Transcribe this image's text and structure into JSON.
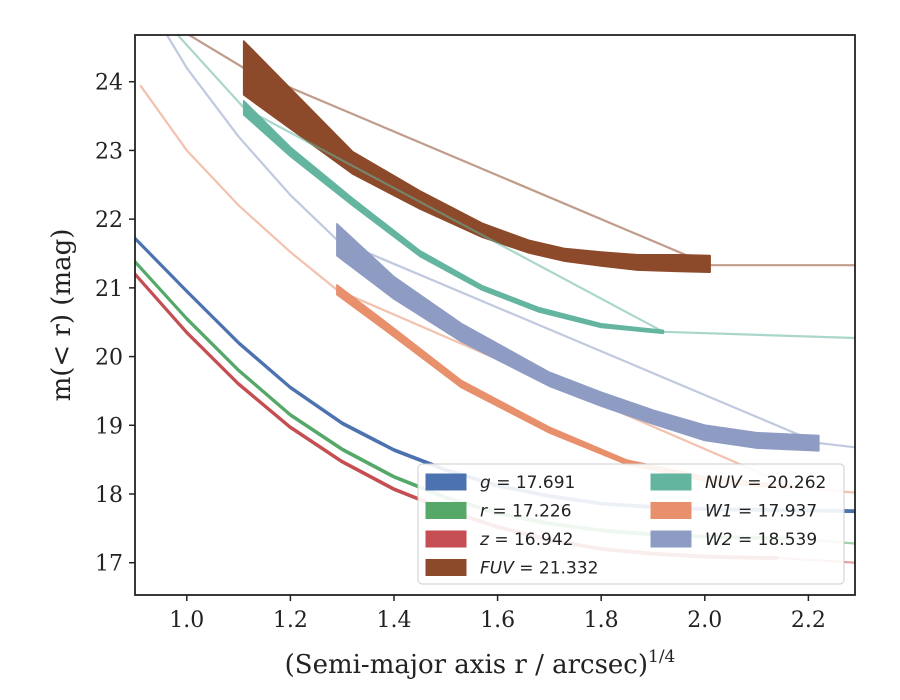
{
  "chart_data": {
    "type": "line",
    "xlabel": "(Semi-major axis r / arcsec)",
    "xlabel_sup": "1/4",
    "ylabel": "m(< r) (mag)",
    "xlim": [
      0.9,
      2.29
    ],
    "ylim": [
      24.68,
      16.53
    ],
    "y_inverted": true,
    "xticks": [
      1.0,
      1.2,
      1.4,
      1.6,
      1.8,
      2.0,
      2.2
    ],
    "xtick_labels": [
      "1.0",
      "1.2",
      "1.4",
      "1.6",
      "1.8",
      "2.0",
      "2.2"
    ],
    "yticks": [
      17,
      18,
      19,
      20,
      21,
      22,
      23,
      24
    ],
    "ytick_labels": [
      "17",
      "18",
      "19",
      "20",
      "21",
      "22",
      "23",
      "24"
    ],
    "grid": false,
    "legend_position": "lower-right",
    "series": [
      {
        "name": "g = 17.691",
        "sym": "g",
        "val": "= 17.691",
        "color": "#4c72b0",
        "x": [
          0.9,
          1.0,
          1.1,
          1.2,
          1.3,
          1.4,
          1.5,
          1.6,
          1.7,
          1.8,
          1.9,
          2.0,
          2.1,
          2.2,
          2.29
        ],
        "y": [
          21.72,
          20.95,
          20.2,
          19.55,
          19.03,
          18.64,
          18.35,
          18.12,
          17.97,
          17.86,
          17.81,
          17.78,
          17.77,
          17.76,
          17.75
        ],
        "width": [
          0.03,
          0.03,
          0.03,
          0.03,
          0.03,
          0.03,
          0.03,
          0.03,
          0.03,
          0.03,
          0.03,
          0.03,
          0.03,
          0.03,
          0.03
        ],
        "fit_x": [],
        "fit_y": []
      },
      {
        "name": "r = 17.226",
        "sym": "r",
        "val": "= 17.226",
        "color": "#55a868",
        "x": [
          0.9,
          1.0,
          1.1,
          1.2,
          1.3,
          1.4,
          1.5,
          1.6,
          1.7,
          1.8,
          1.9,
          2.0,
          2.1,
          2.17
        ],
        "y": [
          21.38,
          20.55,
          19.8,
          19.15,
          18.65,
          18.25,
          17.95,
          17.72,
          17.57,
          17.47,
          17.41,
          17.38,
          17.36,
          17.35
        ],
        "width": [
          0.03,
          0.03,
          0.03,
          0.03,
          0.03,
          0.03,
          0.03,
          0.03,
          0.03,
          0.03,
          0.03,
          0.03,
          0.03,
          0.03
        ],
        "fit_x": [
          2.17,
          2.29
        ],
        "fit_y": [
          17.35,
          17.28
        ]
      },
      {
        "name": "z = 16.942",
        "sym": "z",
        "val": "= 16.942",
        "color": "#c44e52",
        "x": [
          0.9,
          1.0,
          1.1,
          1.2,
          1.3,
          1.4,
          1.5,
          1.6,
          1.7,
          1.8,
          1.9,
          2.0,
          2.1,
          2.14
        ],
        "y": [
          21.2,
          20.35,
          19.6,
          18.97,
          18.47,
          18.07,
          17.77,
          17.52,
          17.33,
          17.2,
          17.13,
          17.09,
          17.07,
          17.07
        ],
        "width": [
          0.03,
          0.03,
          0.03,
          0.03,
          0.03,
          0.03,
          0.03,
          0.03,
          0.03,
          0.03,
          0.03,
          0.03,
          0.03,
          0.03
        ],
        "fit_x": [
          2.14,
          2.29
        ],
        "fit_y": [
          17.07,
          17.0
        ]
      },
      {
        "name": "FUV = 21.332",
        "sym": "FUV",
        "val": "= 21.332",
        "color": "#8c4a2a",
        "x": [
          1.11,
          1.32,
          1.45,
          1.57,
          1.66,
          1.73,
          1.8,
          1.87,
          1.95,
          2.01
        ],
        "y": [
          24.2,
          22.82,
          22.28,
          21.84,
          21.6,
          21.48,
          21.42,
          21.37,
          21.36,
          21.35
        ],
        "width": [
          0.78,
          0.32,
          0.26,
          0.2,
          0.18,
          0.18,
          0.2,
          0.22,
          0.24,
          0.24
        ],
        "fit_x": [
          1.0,
          1.11,
          2.01,
          2.29
        ],
        "fit_y": [
          24.7,
          24.2,
          21.33,
          21.33
        ]
      },
      {
        "name": "NUV = 20.262",
        "sym": "NUV",
        "val": "= 20.262",
        "color": "#64b5a0",
        "x": [
          1.11,
          1.2,
          1.32,
          1.45,
          1.57,
          1.68,
          1.8,
          1.92
        ],
        "y": [
          23.62,
          22.98,
          22.25,
          21.5,
          21.0,
          20.68,
          20.45,
          20.36
        ],
        "width": [
          0.2,
          0.13,
          0.1,
          0.08,
          0.06,
          0.06,
          0.05,
          0.04
        ],
        "fit_x": [
          0.98,
          1.11,
          1.92,
          2.29
        ],
        "fit_y": [
          24.7,
          23.62,
          20.36,
          20.27
        ]
      },
      {
        "name": "W1 = 17.937",
        "sym": "W1",
        "val": "= 17.937",
        "color": "#e8906c",
        "x": [
          1.29,
          1.4,
          1.53,
          1.7,
          1.85,
          2.0,
          2.1,
          2.17
        ],
        "y": [
          20.97,
          20.35,
          19.6,
          18.93,
          18.46,
          18.22,
          18.14,
          18.1
        ],
        "width": [
          0.14,
          0.12,
          0.1,
          0.08,
          0.06,
          0.06,
          0.05,
          0.05
        ],
        "fit_x": [
          0.91,
          1.0,
          1.1,
          1.2,
          1.29,
          2.17,
          2.29
        ],
        "fit_y": [
          23.95,
          23.0,
          22.2,
          21.52,
          20.97,
          18.1,
          18.02
        ]
      },
      {
        "name": "W2 = 18.539",
        "sym": "W2",
        "val": "= 18.539",
        "color": "#8e9cc4",
        "x": [
          1.29,
          1.4,
          1.53,
          1.7,
          1.8,
          1.9,
          2.0,
          2.1,
          2.22
        ],
        "y": [
          21.7,
          21.0,
          20.35,
          19.67,
          19.38,
          19.12,
          18.89,
          18.78,
          18.74
        ],
        "width": [
          0.46,
          0.32,
          0.26,
          0.2,
          0.2,
          0.2,
          0.22,
          0.22,
          0.22
        ],
        "fit_x": [
          0.96,
          1.0,
          1.1,
          1.2,
          1.29,
          2.22,
          2.29
        ],
        "fit_y": [
          24.7,
          24.2,
          23.2,
          22.35,
          21.7,
          18.74,
          18.68
        ]
      }
    ]
  }
}
